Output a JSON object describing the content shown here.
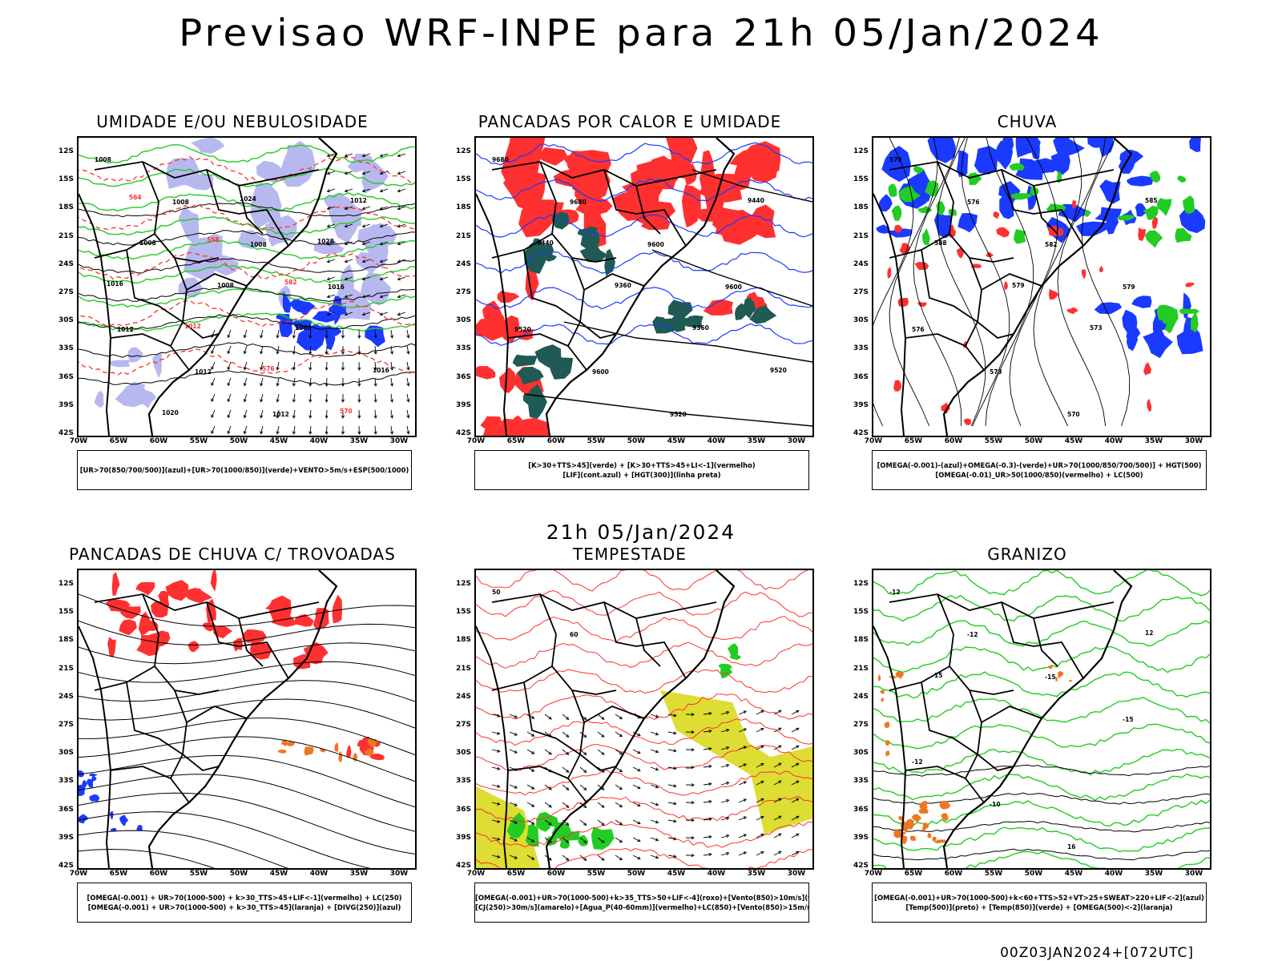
{
  "title": "Previsao WRF-INPE  para 21h 05/Jan/2024",
  "mid_date": "21h 05/Jan/2024",
  "footer": "00Z03JAN2024+[072UTC]",
  "lat_labels": [
    "12S",
    "15S",
    "18S",
    "21S",
    "24S",
    "27S",
    "30S",
    "33S",
    "36S",
    "39S",
    "42S"
  ],
  "lon_labels": [
    "70W",
    "65W",
    "60W",
    "55W",
    "50W",
    "45W",
    "40W",
    "35W",
    "30W"
  ],
  "colors": {
    "blue": "#1a3aff",
    "green": "#22cc22",
    "red": "#ff3030",
    "orange": "#ee7722",
    "yellow": "#dddd33",
    "darkteal": "#1f5a55",
    "lightblue": "#b8b8f0",
    "black": "#000000"
  },
  "chart_data": [
    {
      "type": "map",
      "title": "UMIDADE E/OU NEBULOSIDADE",
      "legend": [
        "[UR>70(850/700/500)](azul)+[UR>70(1000/850)](verde)+VENTO>5m/s+ESP(500/1000)"
      ],
      "contour_labels": [
        "1008",
        "1008",
        "1008",
        "1016",
        "1012",
        "1012",
        "1012",
        "1012",
        "1008",
        "1008",
        "1008",
        "1016",
        "1020",
        "1024",
        "1028",
        "1016",
        "1012",
        "576",
        "570",
        "564",
        "558",
        "582"
      ]
    },
    {
      "type": "map",
      "title": "PANCADAS POR CALOR E UMIDADE",
      "legend": [
        "[K>30+TTS>45](verde) + [K>30+TTS>45+LI<-1](vermelho)",
        "[LIF](cont.azul) + [HGT(300)](linha preta)"
      ],
      "contour_labels": [
        "9680",
        "9680",
        "9600",
        "9600",
        "9520",
        "9600",
        "9520",
        "9440",
        "9440",
        "9360",
        "9360",
        "9520"
      ]
    },
    {
      "type": "map",
      "title": "CHUVA",
      "legend": [
        "[OMEGA(-0.001)-(azul)+OMEGA(-0.3)-(verde)+UR>70(1000/850/700/500)] + HGT(500)",
        "[OMEGA(-0.01)_UR>50(1000/850)(vermelho) + LC(500)"
      ],
      "contour_labels": [
        "576",
        "576",
        "582",
        "579",
        "576",
        "573",
        "570",
        "585",
        "588",
        "579",
        "573"
      ]
    },
    {
      "type": "map",
      "title": "PANCADAS DE CHUVA C/ TROVOADAS",
      "legend": [
        "[OMEGA(-0.001) + UR>70(1000-500) + k>30_TTS>45+LIF<-1](vermelho) + LC(250)",
        "[OMEGA(-0.001) + UR>70(1000-500) + k>30_TTS>45](laranja) + [DIVG(250)](azul)"
      ],
      "contour_labels": []
    },
    {
      "type": "map",
      "title": "TEMPESTADE",
      "legend": [
        "[OMEGA(-0.001)+UR>70(1000-500)+k>35_TTS>50+LIF<-4](roxo)+[Vento(850)>10m/s](verde)",
        "[CJ(250)>30m/s](amarelo)+[Agua_P(40-60mm)](vermelho)+LC(850)+[Vento(850)>15m/s](vetor)"
      ],
      "contour_labels": [
        "50",
        "60"
      ]
    },
    {
      "type": "map",
      "title": "GRANIZO",
      "legend": [
        "[OMEGA(-0.001)+UR>70(1000-500)+k<60+TTS>52+VT>25+SWEAT>220+LIF<-2](azul)",
        "[Temp(500)](preto) + [Temp(850)](verde) + [OMEGA(500)<-2](laranja)"
      ],
      "contour_labels": [
        "-12",
        "-12",
        "-15",
        "-15",
        "-12",
        "-10",
        "16",
        "12",
        "15"
      ]
    }
  ]
}
